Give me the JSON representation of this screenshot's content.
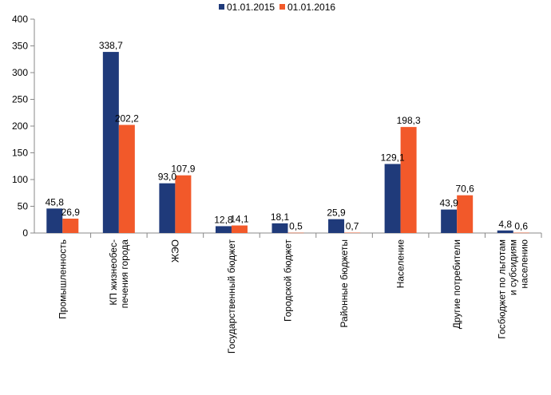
{
  "chart_data": {
    "type": "bar",
    "categories": [
      [
        "Промышленность"
      ],
      [
        "КП жизнеобес-",
        "печения города"
      ],
      [
        "ЖЭО"
      ],
      [
        "Государственный бюджет"
      ],
      [
        "Городской бюджет"
      ],
      [
        "Районные бюджеты"
      ],
      [
        "Население"
      ],
      [
        "Другие потребители"
      ],
      [
        "Госбюджет по льготам",
        "и субсидиям",
        "населению"
      ]
    ],
    "series": [
      {
        "name": "01.01.2015",
        "color": "#1f3a7a",
        "values": [
          45.8,
          338.7,
          93.0,
          12.8,
          18.1,
          25.9,
          129.1,
          43.9,
          4.8
        ],
        "labels": [
          "45,8",
          "338,7",
          "93,0",
          "12,8",
          "18,1",
          "25,9",
          "129,1",
          "43,9",
          "4,8"
        ]
      },
      {
        "name": "01.01.2016",
        "color": "#f2592a",
        "values": [
          26.9,
          202.2,
          107.9,
          14.1,
          0.5,
          0.7,
          198.3,
          70.6,
          0.6
        ],
        "labels": [
          "26,9",
          "202,2",
          "107,9",
          "14,1",
          "0,5",
          "0,7",
          "198,3",
          "70,6",
          "0,6"
        ]
      }
    ],
    "yticks": [
      "0",
      "50",
      "100",
      "150",
      "200",
      "250",
      "300",
      "350",
      "400"
    ],
    "ylim": [
      0,
      400
    ],
    "legend_position": "top",
    "grid": false
  }
}
